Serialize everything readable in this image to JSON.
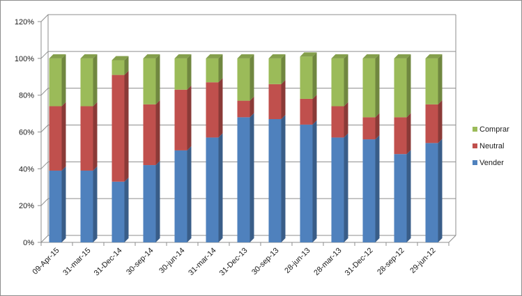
{
  "chart_data": {
    "type": "bar",
    "stacked": true,
    "three_d": true,
    "categories": [
      "09-Apr-15",
      "31-mar-15",
      "31-Dec-14",
      "30-sep-14",
      "30-jun-14",
      "31-mar-14",
      "31-Dec-13",
      "30-sep-13",
      "28-jun-13",
      "28-mar-13",
      "31-Dec-12",
      "28-sep-12",
      "29-jun-12"
    ],
    "series": [
      {
        "name": "Vender",
        "color": "#4f81bd",
        "values": [
          39,
          39,
          33,
          42,
          50,
          57,
          68,
          67,
          64,
          57,
          56,
          48,
          54
        ]
      },
      {
        "name": "Neutral",
        "color": "#c0504d",
        "values": [
          35,
          35,
          58,
          33,
          33,
          30,
          9,
          19,
          14,
          17,
          12,
          20,
          21
        ]
      },
      {
        "name": "Comprar",
        "color": "#9bbb59",
        "values": [
          26,
          26,
          8,
          25,
          17,
          13,
          23,
          14,
          23,
          26,
          32,
          32,
          25
        ]
      }
    ],
    "y_ticks": [
      "0%",
      "20%",
      "40%",
      "60%",
      "80%",
      "100%",
      "120%"
    ],
    "ylim": [
      0,
      120
    ],
    "y_unit": "%",
    "grid": true,
    "legend_position": "right",
    "legend_order": [
      "Comprar",
      "Neutral",
      "Vender"
    ]
  }
}
